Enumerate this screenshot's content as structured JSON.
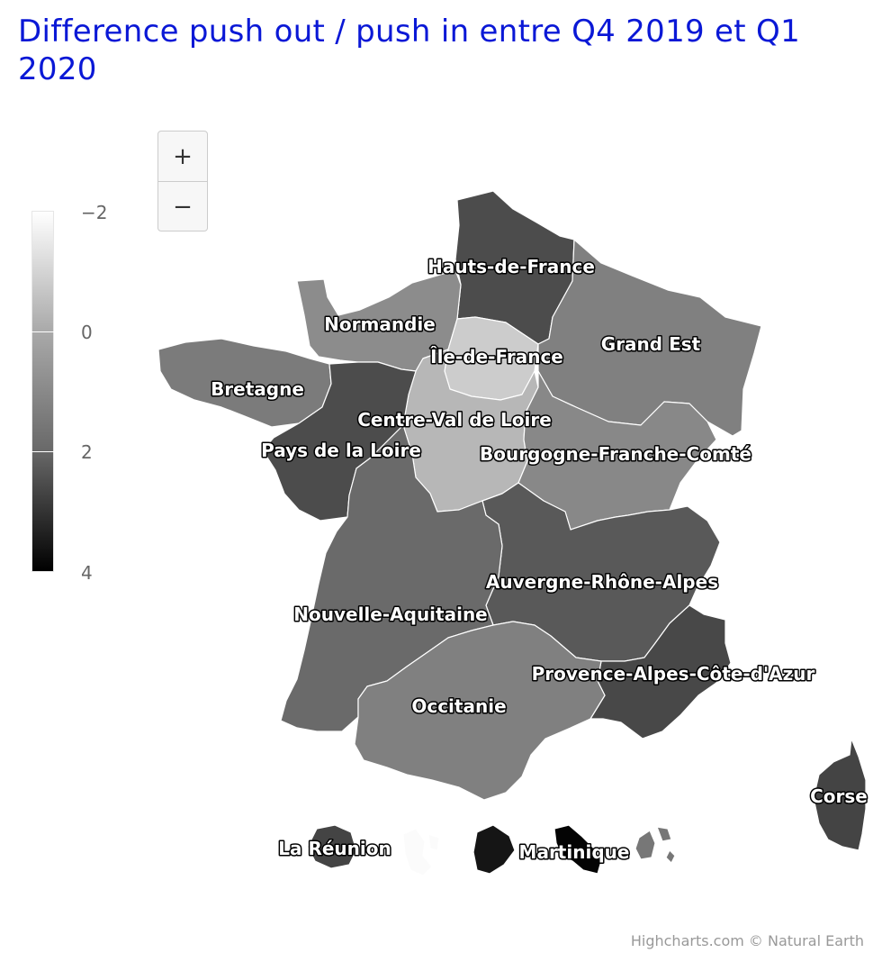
{
  "title": "Difference push out / push in entre Q4 2019 et Q1 2020",
  "zoom": {
    "zoom_in_label": "+",
    "zoom_out_label": "−"
  },
  "legend": {
    "ticks": [
      "−2",
      "0",
      "2",
      "4"
    ],
    "min": -2,
    "max": 4,
    "colors": [
      "#ffffff",
      "#000000"
    ]
  },
  "chart_data": {
    "type": "map",
    "title": "Difference push out / push in entre Q4 2019 et Q1 2020",
    "color_axis": {
      "min": -2,
      "max": 4
    },
    "regions": [
      {
        "name": "Hauts-de-France",
        "value": 2.2
      },
      {
        "name": "Normandie",
        "value": 0.7
      },
      {
        "name": "Île-de-France",
        "value": -0.8
      },
      {
        "name": "Grand Est",
        "value": 1.0
      },
      {
        "name": "Bretagne",
        "value": 1.1
      },
      {
        "name": "Centre-Val de Loire",
        "value": -0.3
      },
      {
        "name": "Pays de la Loire",
        "value": 2.2
      },
      {
        "name": "Bourgogne-Franche-Comté",
        "value": 0.8
      },
      {
        "name": "Auvergne-Rhône-Alpes",
        "value": 1.9
      },
      {
        "name": "Nouvelle-Aquitaine",
        "value": 1.5
      },
      {
        "name": "Provence-Alpes-Côte-d'Azur",
        "value": 2.3
      },
      {
        "name": "Occitanie",
        "value": 1.0
      },
      {
        "name": "Corse",
        "value": 2.4
      },
      {
        "name": "La Réunion",
        "value": 2.4
      },
      {
        "name": "Martinique",
        "value": 3.9
      }
    ],
    "unlabeled_regions": [
      {
        "value": -1.9
      },
      {
        "value": 3.5
      },
      {
        "value": 1.2
      }
    ]
  },
  "credits": "Highcharts.com © Natural Earth"
}
